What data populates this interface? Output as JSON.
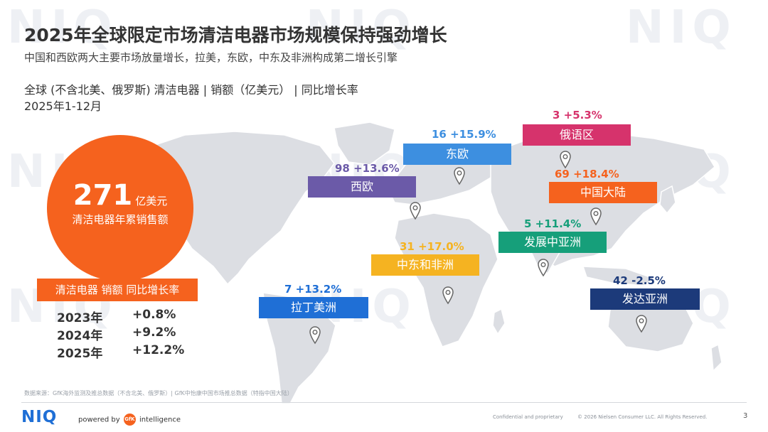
{
  "header": {
    "title": "2025年全球限定市场清洁电器市场规模保持强劲增长",
    "subtitle": "中国和西欧两大主要市场放量增长，拉美，东欧，中东及非洲构成第二增长引擎",
    "scope": "全球 (不含北美、俄罗斯) 清洁电器 | 销额（亿美元） | 同比增长率",
    "period": "2025年1-12月"
  },
  "summary": {
    "value": "271",
    "unit": "亿美元",
    "label": "清洁电器年累销售额"
  },
  "growth_table": {
    "header": "清洁电器 销额 同比增长率",
    "rows": [
      {
        "year": "2023年",
        "value": "+0.8%"
      },
      {
        "year": "2024年",
        "value": "+9.2%"
      },
      {
        "year": "2025年",
        "value": "+12.2%"
      }
    ]
  },
  "regions": [
    {
      "name": "俄语区",
      "stat": "3  +5.3%",
      "color": "#d6336c"
    },
    {
      "name": "东欧",
      "stat": "16  +15.9%",
      "color": "#3d8fe0"
    },
    {
      "name": "西欧",
      "stat": "98  +13.6%",
      "color": "#6b5aa8"
    },
    {
      "name": "中国大陆",
      "stat": "69  +18.4%",
      "color": "#f5621e"
    },
    {
      "name": "发展中亚洲",
      "stat": "5  +11.4%",
      "color": "#169f7a"
    },
    {
      "name": "中东和非洲",
      "stat": "31  +17.0%",
      "color": "#f5b321"
    },
    {
      "name": "拉丁美洲",
      "stat": "7  +13.2%",
      "color": "#1f6fd6"
    },
    {
      "name": "发达亚洲",
      "stat": "42  -2.5%",
      "color": "#1c3a7a"
    }
  ],
  "colors": {
    "accent": "#f5621e",
    "map": "#dcdee3",
    "watermark": "#eef0f4"
  },
  "footer": {
    "source": "数据来源：GfK海外监测及推总数据（不含北美、俄罗斯）| GfK中怡康中国市场推总数据（特指中国大陆）",
    "logo": "NIQ",
    "powered_by": "powered by",
    "gfk": "GfK",
    "intelligence": "intelligence",
    "confidential": "Confidential and proprietary",
    "copyright": "© 2026 Nielsen Consumer LLC. All Rights Reserved.",
    "page": "3"
  },
  "watermark_text": "NIQ"
}
